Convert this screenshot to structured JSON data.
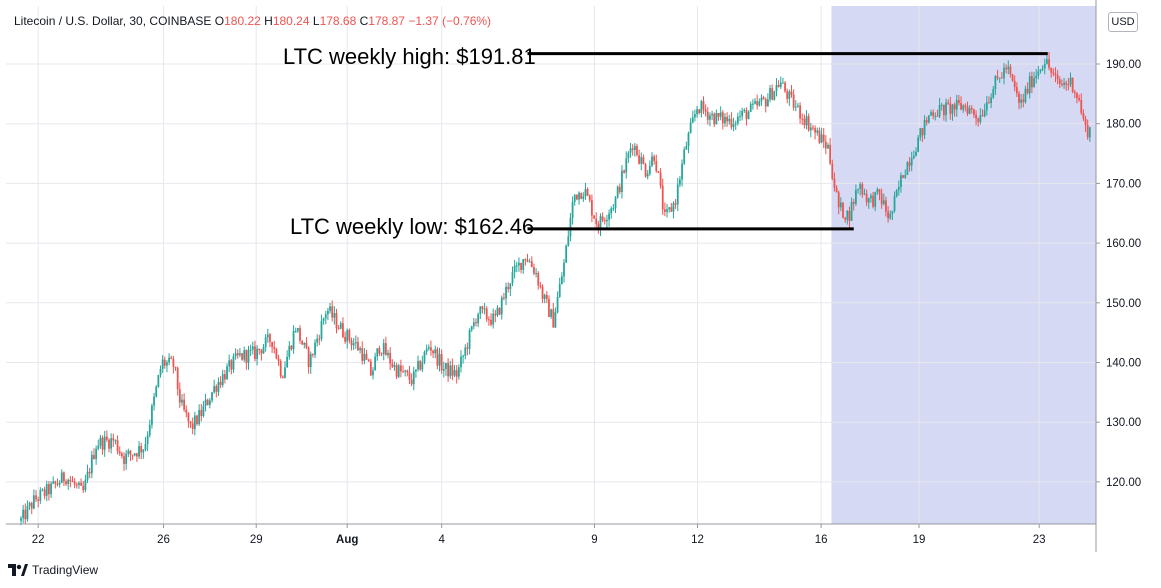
{
  "header": {
    "symbol": "Litecoin / U.S. Dollar, 30, COINBASE",
    "open_label": "O",
    "open": "180.22",
    "high_label": "H",
    "high": "180.24",
    "low_label": "L",
    "low": "178.68",
    "close_label": "C",
    "close": "178.87",
    "change": "−1.37 (−0.76%)"
  },
  "currency_button": "USD",
  "brand": "TradingView",
  "annotations": {
    "high_label": "LTC weekly high: $191.81",
    "low_label": "LTC weekly low: $162.46"
  },
  "colors": {
    "up": "#26a69a",
    "down": "#ef5350",
    "highlight": "#d6d9f4",
    "grid": "#e6e8ee"
  },
  "chart_data": {
    "type": "candlestick",
    "title": "Litecoin / U.S. Dollar, 30, COINBASE",
    "ylim": [
      112,
      197
    ],
    "y_ticks": [
      "190.00",
      "180.00",
      "170.00",
      "160.00",
      "150.00",
      "140.00",
      "130.00",
      "120.00"
    ],
    "x_ticks": [
      "22",
      "26",
      "29",
      "Aug",
      "4",
      "9",
      "12",
      "16",
      "19",
      "23"
    ],
    "price_path": [
      [
        0,
        113.5
      ],
      [
        0.8,
        117
      ],
      [
        1.8,
        119
      ],
      [
        2.6,
        121
      ],
      [
        3.6,
        118
      ],
      [
        4.4,
        126.5
      ],
      [
        5.4,
        127
      ],
      [
        6.0,
        124
      ],
      [
        7.2,
        126
      ],
      [
        8.2,
        140
      ],
      [
        8.9,
        139.5
      ],
      [
        9.3,
        133
      ],
      [
        9.9,
        129
      ],
      [
        10.5,
        131.5
      ],
      [
        11.3,
        136
      ],
      [
        12.1,
        139
      ],
      [
        12.7,
        141
      ],
      [
        13.6,
        141.5
      ],
      [
        14.6,
        144
      ],
      [
        15.2,
        138
      ],
      [
        16.0,
        146
      ],
      [
        16.8,
        140
      ],
      [
        17.8,
        149
      ],
      [
        18.8,
        145
      ],
      [
        19.8,
        142
      ],
      [
        20.4,
        138
      ],
      [
        20.9,
        143
      ],
      [
        21.8,
        139
      ],
      [
        22.8,
        137
      ],
      [
        23.8,
        143
      ],
      [
        24.6,
        139
      ],
      [
        25.4,
        138
      ],
      [
        26.6,
        148.5
      ],
      [
        27.6,
        147
      ],
      [
        28.5,
        154
      ],
      [
        29.4,
        158
      ],
      [
        30.0,
        155
      ],
      [
        30.4,
        151
      ],
      [
        31.0,
        147
      ],
      [
        31.6,
        156
      ],
      [
        32.2,
        168
      ],
      [
        32.8,
        169
      ],
      [
        33.6,
        163
      ],
      [
        34.6,
        167
      ],
      [
        35.6,
        177
      ],
      [
        36.4,
        172
      ],
      [
        36.9,
        175
      ],
      [
        37.5,
        164
      ],
      [
        38.1,
        167
      ],
      [
        38.7,
        176
      ],
      [
        39.4,
        183
      ],
      [
        40.4,
        181
      ],
      [
        41.4,
        180.5
      ],
      [
        42.4,
        182
      ],
      [
        43.4,
        184
      ],
      [
        44.2,
        187
      ],
      [
        44.8,
        184
      ],
      [
        45.6,
        181
      ],
      [
        46.4,
        178
      ],
      [
        47.0,
        176
      ],
      [
        47.6,
        166
      ],
      [
        48.2,
        164.5
      ],
      [
        48.8,
        170
      ],
      [
        49.4,
        167
      ],
      [
        50.0,
        168
      ],
      [
        50.6,
        164
      ],
      [
        51.4,
        172
      ],
      [
        52.2,
        177
      ],
      [
        53.0,
        182
      ],
      [
        54.0,
        182.5
      ],
      [
        55.0,
        183
      ],
      [
        55.8,
        181
      ],
      [
        56.6,
        186
      ],
      [
        57.4,
        189.5
      ],
      [
        58.2,
        183
      ],
      [
        58.8,
        187
      ],
      [
        59.6,
        190.8
      ],
      [
        60.4,
        186.5
      ],
      [
        61.2,
        187
      ],
      [
        61.6,
        184
      ],
      [
        62.0,
        179
      ]
    ],
    "highlight_range": [
      47.2,
      62.3
    ],
    "x_end": 62.3,
    "weekly_high": 191.81,
    "weekly_low": 162.46,
    "high_line_x": [
      29.5,
      59.8
    ],
    "low_line_x": [
      29.5,
      48.5
    ]
  }
}
